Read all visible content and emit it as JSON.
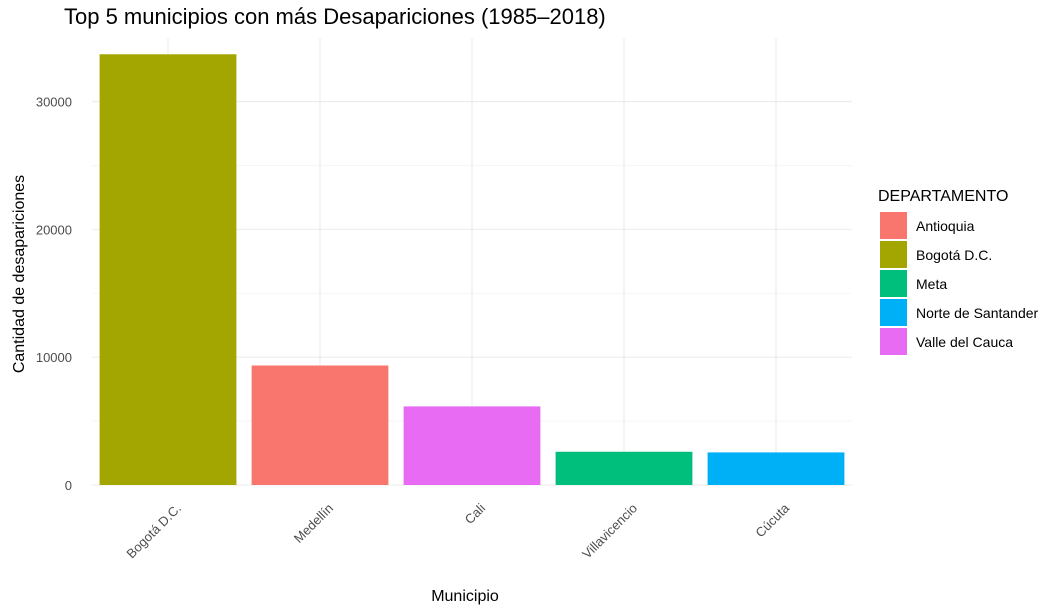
{
  "chart_data": {
    "type": "bar",
    "title": "Top 5 municipios con más Desapariciones (1985–2018)",
    "xlabel": "Municipio",
    "ylabel": "Cantidad de desapariciones",
    "categories": [
      "Bogotá D.C.",
      "Medellín",
      "Cali",
      "Villavicencio",
      "Cúcuta"
    ],
    "values": [
      33700,
      9350,
      6150,
      2600,
      2550
    ],
    "bar_departments": [
      "Bogotá D.C.",
      "Antioquia",
      "Valle del Cauca",
      "Meta",
      "Norte de Santander"
    ],
    "ylim": [
      0,
      35000
    ],
    "yticks": [
      0,
      10000,
      20000,
      30000
    ],
    "grid": true,
    "legend": {
      "title": "DEPARTAMENTO",
      "position": "right",
      "entries": [
        {
          "label": "Antioquia",
          "color": "#F8766D"
        },
        {
          "label": "Bogotá D.C.",
          "color": "#A3A500"
        },
        {
          "label": "Meta",
          "color": "#00BF7D"
        },
        {
          "label": "Norte de Santander",
          "color": "#00B0F6"
        },
        {
          "label": "Valle del Cauca",
          "color": "#E76BF3"
        }
      ]
    }
  }
}
